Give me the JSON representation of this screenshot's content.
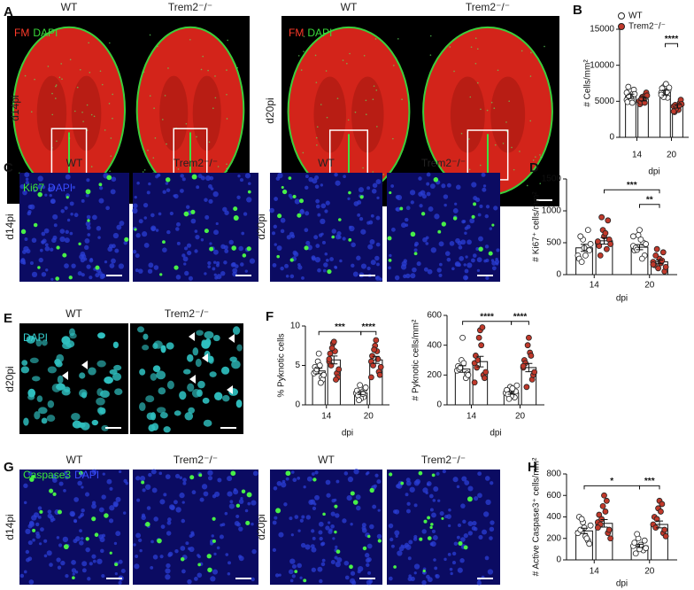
{
  "panel_a": {
    "letter": "A",
    "columns": [
      "WT",
      "Trem2⁻/⁻",
      "WT",
      "Trem2⁻/⁻"
    ],
    "rows": [
      "d14pi",
      "d20pi"
    ],
    "stain": [
      {
        "text": "FM",
        "color": "#ff3a2a"
      },
      {
        "text": "DAPI",
        "color": "#39d83a"
      }
    ]
  },
  "panel_c": {
    "letter": "C",
    "columns": [
      "WT",
      "Trem2⁻/⁻",
      "WT",
      "Trem2⁻/⁻"
    ],
    "rows": [
      "d14pi",
      "d20pi"
    ],
    "stain": [
      {
        "text": "Ki67",
        "color": "#3be83b"
      },
      {
        "text": "DAPI",
        "color": "#3a4cff"
      }
    ]
  },
  "panel_e": {
    "letter": "E",
    "columns": [
      "WT",
      "Trem2⁻/⁻"
    ],
    "rows": [
      "d20pi"
    ],
    "stain": [
      {
        "text": "DAPI",
        "color": "#35d0d0"
      }
    ]
  },
  "panel_g": {
    "letter": "G",
    "columns": [
      "WT",
      "Trem2⁻/⁻",
      "WT",
      "Trem2⁻/⁻"
    ],
    "rows": [
      "d14pi",
      "d20pi"
    ],
    "stain": [
      {
        "text": "Caspase3",
        "color": "#3be83b"
      },
      {
        "text": "DAPI",
        "color": "#3a4cff"
      }
    ]
  },
  "chart_data": [
    {
      "panel": "B",
      "type": "bar",
      "ylabel": "# Cells/mm²",
      "xlabel": "dpi",
      "categories": [
        "14",
        "20"
      ],
      "ylim": [
        0,
        15000
      ],
      "yticks": [
        0,
        5000,
        10000,
        15000
      ],
      "legend": true,
      "series": [
        {
          "name": "WT",
          "color": "#ffffff",
          "values": [
            5700,
            6200
          ],
          "errors": [
            300,
            330
          ],
          "points": [
            [
              5200,
              5800,
              6100,
              4900,
              5500,
              6600,
              7000,
              5300,
              6000,
              5700,
              4800,
              6200
            ],
            [
              6200,
              7100,
              5500,
              6800,
              6000,
              6500,
              5800,
              7400,
              6900,
              5600,
              6300,
              5900
            ]
          ]
        },
        {
          "name": "Trem2⁻/⁻",
          "color": "#c0392b",
          "values": [
            5300,
            4300
          ],
          "errors": [
            250,
            250
          ],
          "points": [
            [
              5000,
              5600,
              5900,
              4600,
              5300,
              6200,
              4900,
              5100,
              5800,
              5400,
              4800
            ],
            [
              4300,
              3900,
              4800,
              3500,
              4100,
              5200,
              4500,
              3800,
              4600,
              4000,
              4400,
              3600
            ]
          ]
        }
      ],
      "comparisons": [
        {
          "label": "****",
          "y": 13000,
          "between": [
            [
              1,
              0
            ],
            [
              1,
              1
            ]
          ]
        }
      ]
    },
    {
      "panel": "D",
      "type": "bar",
      "ylabel": "# Ki67⁺ cells/mm²",
      "xlabel": "dpi",
      "categories": [
        "14",
        "20"
      ],
      "ylim": [
        0,
        1500
      ],
      "yticks": [
        0,
        500,
        1000,
        1500
      ],
      "legend": false,
      "series": [
        {
          "name": "WT",
          "color": "#ffffff",
          "values": [
            420,
            430
          ],
          "errors": [
            55,
            40
          ],
          "points": [
            [
              300,
              550,
              700,
              250,
              420,
              380,
              600,
              300,
              480,
              200
            ],
            [
              450,
              620,
              500,
              380,
              700,
              300,
              420,
              550,
              480,
              390,
              250,
              600
            ]
          ]
        },
        {
          "name": "Trem2⁻/⁻",
          "color": "#c0392b",
          "values": [
            530,
            200
          ],
          "errors": [
            50,
            30
          ],
          "points": [
            [
              500,
              700,
              850,
              450,
              600,
              550,
              300,
              650,
              480,
              900,
              400,
              520
            ],
            [
              200,
              100,
              350,
              150,
              250,
              50,
              300,
              180,
              120,
              400,
              220,
              160
            ]
          ]
        }
      ],
      "comparisons": [
        {
          "label": "***",
          "y": 1330,
          "between": [
            [
              0,
              1
            ],
            [
              1,
              1
            ]
          ]
        },
        {
          "label": "**",
          "y": 1100,
          "between": [
            [
              1,
              0
            ],
            [
              1,
              1
            ]
          ]
        }
      ]
    },
    {
      "panel": "F",
      "type": "bar",
      "ylabel": "% Pyknotic cells",
      "xlabel": "dpi",
      "categories": [
        "14",
        "20"
      ],
      "ylim": [
        0,
        10
      ],
      "yticks": [
        0,
        5,
        10
      ],
      "legend": false,
      "series": [
        {
          "name": "WT",
          "color": "#ffffff",
          "values": [
            4.3,
            1.5
          ],
          "errors": [
            0.35,
            0.2
          ],
          "points": [
            [
              4.0,
              5.5,
              3.5,
              4.8,
              6.5,
              3.2,
              4.2,
              5.0,
              3.8,
              4.5,
              2.8
            ],
            [
              1.5,
              2.5,
              1.0,
              1.8,
              0.8,
              2.0,
              1.2,
              1.6,
              2.2,
              0.6,
              1.4
            ]
          ]
        },
        {
          "name": "Trem2⁻/⁻",
          "color": "#c0392b",
          "values": [
            5.7,
            5.7
          ],
          "errors": [
            0.5,
            0.45
          ],
          "points": [
            [
              5.5,
              7.8,
              4.0,
              6.5,
              8.0,
              3.5,
              5.0,
              6.8,
              4.5,
              7.2,
              3.2,
              5.8
            ],
            [
              5.5,
              7.5,
              4.2,
              6.2,
              8.2,
              3.8,
              5.0,
              6.8,
              4.8,
              7.0,
              5.8,
              3.5
            ]
          ]
        }
      ],
      "comparisons": [
        {
          "label": "***",
          "y": 9.3,
          "between": [
            [
              0,
              0
            ],
            [
              1,
              0
            ]
          ]
        },
        {
          "label": "****",
          "y": 9.3,
          "between": [
            [
              1,
              0
            ],
            [
              1,
              1
            ]
          ]
        }
      ]
    },
    {
      "type": "bar",
      "ylabel": "# Pyknotic cells/mm²",
      "xlabel": "dpi",
      "categories": [
        "14",
        "20"
      ],
      "ylim": [
        0,
        600
      ],
      "yticks": [
        0,
        200,
        400,
        600
      ],
      "legend": false,
      "series": [
        {
          "name": "WT",
          "color": "#ffffff",
          "values": [
            240,
            80
          ],
          "errors": [
            22,
            9
          ],
          "points": [
            [
              230,
              300,
              180,
              260,
              450,
              210,
              240,
              280,
              200,
              250
            ],
            [
              80,
              120,
              50,
              100,
              60,
              90,
              70,
              110,
              130,
              40
            ]
          ]
        },
        {
          "name": "Trem2⁻/⁻",
          "color": "#c0392b",
          "values": [
            290,
            250
          ],
          "errors": [
            35,
            28
          ],
          "points": [
            [
              280,
              450,
              200,
              330,
              500,
              180,
              250,
              400,
              220,
              300,
              520,
              150
            ],
            [
              250,
              400,
              170,
              300,
              450,
              200,
              280,
              350,
              220,
              120,
              330,
              260
            ]
          ]
        }
      ],
      "comparisons": [
        {
          "label": "****",
          "y": 560,
          "between": [
            [
              0,
              0
            ],
            [
              1,
              0
            ]
          ]
        },
        {
          "label": "****",
          "y": 560,
          "between": [
            [
              1,
              0
            ],
            [
              1,
              1
            ]
          ]
        }
      ]
    },
    {
      "panel": "H",
      "type": "bar",
      "ylabel": "# Active Caspase3⁺ cells/mm²",
      "xlabel": "dpi",
      "categories": [
        "14",
        "20"
      ],
      "ylim": [
        0,
        800
      ],
      "yticks": [
        0,
        200,
        400,
        600,
        800
      ],
      "legend": false,
      "series": [
        {
          "name": "WT",
          "color": "#ffffff",
          "values": [
            270,
            130
          ],
          "errors": [
            25,
            15
          ],
          "points": [
            [
              250,
              350,
              180,
              400,
              300,
              150,
              280,
              220,
              320,
              380,
              200
            ],
            [
              130,
              200,
              90,
              160,
              100,
              180,
              60,
              140,
              110,
              240
            ]
          ]
        },
        {
          "name": "Trem2⁻/⁻",
          "color": "#c0392b",
          "values": [
            340,
            330
          ],
          "errors": [
            35,
            32
          ],
          "points": [
            [
              350,
              500,
              250,
              420,
              600,
              280,
              330,
              450,
              200,
              380,
              550,
              300
            ],
            [
              330,
              480,
              250,
              400,
              550,
              280,
              300,
              450,
              220,
              380,
              520
            ]
          ]
        }
      ],
      "comparisons": [
        {
          "label": "*",
          "y": 690,
          "between": [
            [
              0,
              0
            ],
            [
              1,
              0
            ]
          ]
        },
        {
          "label": "***",
          "y": 690,
          "between": [
            [
              1,
              0
            ],
            [
              1,
              1
            ]
          ]
        }
      ]
    }
  ]
}
